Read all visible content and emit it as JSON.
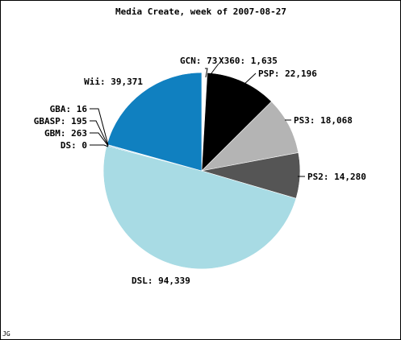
{
  "chart_data": {
    "type": "pie",
    "title": "Media Create, week of 2007-08-27",
    "label_format": "{name}: {value}",
    "start_angle_deg": -90,
    "direction": "clockwise",
    "slices": [
      {
        "name": "GCN",
        "value": 73,
        "value_text": "73",
        "color": "#33dd55"
      },
      {
        "name": "X360",
        "value": 1635,
        "value_text": "1,635",
        "color": "#ffffff"
      },
      {
        "name": "PSP",
        "value": 22196,
        "value_text": "22,196",
        "color": "#000000"
      },
      {
        "name": "PS3",
        "value": 18068,
        "value_text": "18,068",
        "color": "#b4b4b4"
      },
      {
        "name": "PS2",
        "value": 14280,
        "value_text": "14,280",
        "color": "#555555"
      },
      {
        "name": "DSL",
        "value": 94339,
        "value_text": "94,339",
        "color": "#a8dbe4"
      },
      {
        "name": "DS",
        "value": 0,
        "value_text": "0",
        "color": "#a8dbe4"
      },
      {
        "name": "GBM",
        "value": 263,
        "value_text": "263",
        "color": "#1080c0"
      },
      {
        "name": "GBASP",
        "value": 195,
        "value_text": "195",
        "color": "#1080c0"
      },
      {
        "name": "GBA",
        "value": 16,
        "value_text": "16",
        "color": "#1080c0"
      },
      {
        "name": "Wii",
        "value": 39371,
        "value_text": "39,371",
        "color": "#1080c0"
      }
    ]
  },
  "footer": {
    "mark": "JG"
  }
}
